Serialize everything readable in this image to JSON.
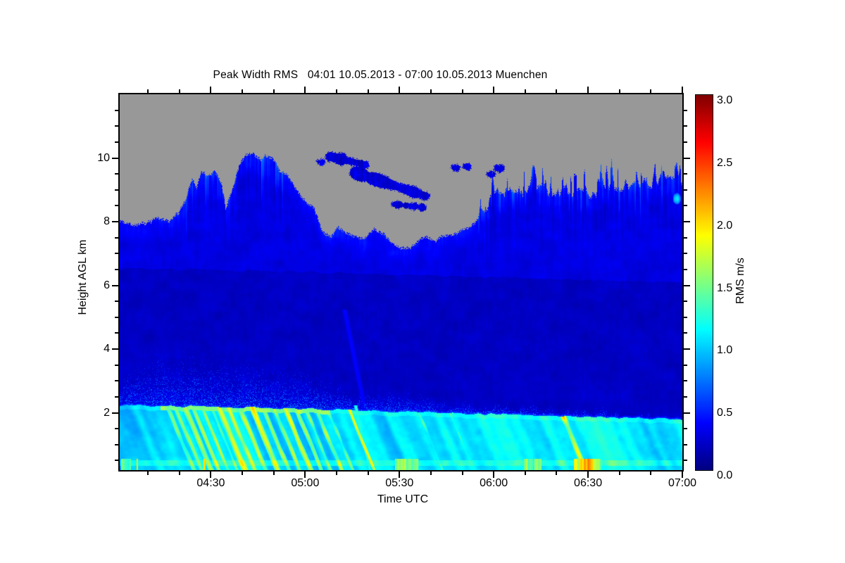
{
  "chart_data": {
    "type": "heatmap",
    "title": "Peak Width RMS   04:01 10.05.2013 - 07:00 10.05.2013 Muenchen",
    "station": "Muenchen",
    "time_start": "04:01 10.05.2013",
    "time_end": "07:00 10.05.2013",
    "x": {
      "label": "Time UTC",
      "start_label": "04:01",
      "end_label": "07:00",
      "duration_min": 179,
      "major_ticks": [
        {
          "min": 29,
          "label": "04:30"
        },
        {
          "min": 59,
          "label": "05:00"
        },
        {
          "min": 89,
          "label": "05:30"
        },
        {
          "min": 119,
          "label": "06:00"
        },
        {
          "min": 149,
          "label": "06:30"
        },
        {
          "min": 179,
          "label": "07:00"
        }
      ],
      "minor_first_min": 9,
      "minor_step_min": 10
    },
    "y": {
      "label": "Height AGL km",
      "min": 0.2,
      "max": 12.0,
      "major_ticks": [
        2,
        4,
        6,
        8,
        10
      ],
      "minor_step": 0.5
    },
    "colorbar": {
      "label": "RMS m/s",
      "min": 0,
      "max": 3,
      "major_ticks": [
        0,
        0.5,
        1,
        1.5,
        2,
        2.5,
        3
      ],
      "minor_step": 0.1,
      "colormap": "jet"
    },
    "no_data_color": "#989898",
    "axes_color": "#000000",
    "field": {
      "cloud_top_km": [
        [
          0,
          8.05
        ],
        [
          4,
          7.9
        ],
        [
          8,
          8.0
        ],
        [
          12,
          8.2
        ],
        [
          16,
          8.0
        ],
        [
          19,
          8.3
        ],
        [
          21,
          8.7
        ],
        [
          23,
          9.4
        ],
        [
          24.5,
          9.1
        ],
        [
          26,
          9.65
        ],
        [
          28,
          9.38
        ],
        [
          30.5,
          9.6
        ],
        [
          32.5,
          9.2
        ],
        [
          33.8,
          8.45
        ],
        [
          35,
          8.9
        ],
        [
          36.5,
          9.25
        ],
        [
          38,
          9.75
        ],
        [
          40,
          10.05
        ],
        [
          42,
          10.18
        ],
        [
          44,
          10.0
        ],
        [
          46.5,
          10.1
        ],
        [
          49,
          10.0
        ],
        [
          51,
          9.65
        ],
        [
          53,
          9.6
        ],
        [
          55,
          9.28
        ],
        [
          57,
          8.95
        ],
        [
          59.5,
          8.62
        ],
        [
          62,
          8.45
        ],
        [
          64.5,
          7.72
        ],
        [
          67,
          7.55
        ],
        [
          69.5,
          7.85
        ],
        [
          72,
          7.68
        ],
        [
          75,
          7.55
        ],
        [
          78,
          7.5
        ],
        [
          81,
          7.8
        ],
        [
          84,
          7.68
        ],
        [
          87,
          7.37
        ],
        [
          89.5,
          7.2
        ],
        [
          92.5,
          7.2
        ],
        [
          95,
          7.42
        ],
        [
          97.5,
          7.55
        ],
        [
          100,
          7.38
        ],
        [
          102.5,
          7.6
        ],
        [
          105,
          7.62
        ],
        [
          108,
          7.72
        ],
        [
          111,
          7.85
        ],
        [
          113.5,
          8.05
        ],
        [
          115,
          8.4
        ],
        [
          116.5,
          8.25
        ],
        [
          118,
          8.75
        ],
        [
          120,
          8.9
        ],
        [
          122,
          8.8
        ],
        [
          124,
          9.0
        ],
        [
          126,
          8.9
        ],
        [
          128,
          9.0
        ],
        [
          130,
          9.08
        ],
        [
          132,
          8.95
        ],
        [
          134,
          9.1
        ],
        [
          136,
          9.0
        ],
        [
          138,
          9.1
        ],
        [
          140,
          8.95
        ],
        [
          142,
          9.12
        ],
        [
          144,
          9.0
        ],
        [
          146,
          9.1
        ],
        [
          148,
          9.12
        ],
        [
          150,
          9.02
        ],
        [
          153,
          9.15
        ],
        [
          155,
          9.25
        ],
        [
          157,
          9.1
        ],
        [
          159,
          9.18
        ],
        [
          161,
          9.35
        ],
        [
          163,
          9.15
        ],
        [
          165,
          9.22
        ],
        [
          167,
          9.4
        ],
        [
          169,
          9.2
        ],
        [
          171,
          9.28
        ],
        [
          173,
          9.45
        ],
        [
          175,
          9.32
        ],
        [
          177,
          9.28
        ],
        [
          179,
          9.25
        ]
      ],
      "cloud_jitter": [
        [
          0,
          0.08
        ],
        [
          20,
          0.15
        ],
        [
          35,
          0.18
        ],
        [
          55,
          0.12
        ],
        [
          70,
          0.08
        ],
        [
          100,
          0.08
        ],
        [
          113,
          0.12
        ],
        [
          116,
          0.28
        ],
        [
          125,
          0.33
        ],
        [
          150,
          0.38
        ],
        [
          179,
          0.36
        ]
      ],
      "spike_after_min": 114,
      "band_top_km": [
        [
          0,
          2.24
        ],
        [
          20,
          2.2
        ],
        [
          40,
          2.16
        ],
        [
          60,
          2.12
        ],
        [
          80,
          2.06
        ],
        [
          100,
          2.0
        ],
        [
          120,
          1.95
        ],
        [
          140,
          1.9
        ],
        [
          160,
          1.85
        ],
        [
          179,
          1.79
        ]
      ],
      "plume_env_km": [
        [
          0,
          3.3
        ],
        [
          6,
          4.0
        ],
        [
          12,
          4.25
        ],
        [
          18,
          4.1
        ],
        [
          24,
          4.2
        ],
        [
          30,
          4.25
        ],
        [
          36,
          4.0
        ],
        [
          42,
          4.1
        ],
        [
          48,
          3.8
        ],
        [
          54,
          3.6
        ],
        [
          58,
          3.75
        ],
        [
          63,
          3.4
        ],
        [
          68,
          3.1
        ],
        [
          74,
          2.9
        ],
        [
          80,
          2.75
        ],
        [
          88,
          2.9
        ],
        [
          95,
          2.75
        ],
        [
          102,
          2.6
        ],
        [
          110,
          2.45
        ],
        [
          120,
          2.3
        ],
        [
          135,
          2.25
        ],
        [
          150,
          2.1
        ],
        [
          165,
          2.0
        ],
        [
          179,
          1.95
        ]
      ],
      "virga_zones": [
        {
          "t0": 21,
          "t1": 52,
          "depth": 1.7,
          "strength": 0.6
        },
        {
          "t0": 114,
          "t1": 126,
          "depth": 0.9,
          "strength": 0.38
        },
        {
          "t0": 127,
          "t1": 140,
          "depth": 0.8,
          "strength": 0.3
        },
        {
          "t0": 141,
          "t1": 160,
          "depth": 1.2,
          "strength": 0.5
        },
        {
          "t0": 160,
          "t1": 179,
          "depth": 1.4,
          "strength": 0.55
        }
      ],
      "islands": [
        {
          "t0": 63,
          "k0": 9.9,
          "t1": 64.2,
          "k1": 9.88,
          "r": 0.09
        },
        {
          "t0": 67,
          "k0": 10.05,
          "t1": 78,
          "k1": 9.8,
          "r": 0.14
        },
        {
          "t0": 75,
          "k0": 9.55,
          "t1": 97,
          "k1": 8.82,
          "r": 0.17
        },
        {
          "t0": 87,
          "k0": 8.56,
          "t1": 96,
          "k1": 8.47,
          "r": 0.09
        },
        {
          "t0": 106,
          "k0": 9.72,
          "t1": 107,
          "k1": 9.7,
          "r": 0.09
        },
        {
          "t0": 109.8,
          "k0": 9.75,
          "t1": 110.6,
          "k1": 9.74,
          "r": 0.08
        },
        {
          "t0": 117.5,
          "k0": 9.5,
          "t1": 118.3,
          "k1": 9.5,
          "r": 0.09
        },
        {
          "t0": 120,
          "k0": 9.7,
          "t1": 121,
          "k1": 9.68,
          "r": 0.1
        }
      ],
      "yellow_streaks": [
        {
          "t": 15,
          "v": 1.5,
          "w": 0.9
        },
        {
          "t": 17.5,
          "v": 1.62,
          "w": 0.8
        },
        {
          "t": 20.5,
          "v": 1.78,
          "w": 1.0
        },
        {
          "t": 23,
          "v": 1.65,
          "w": 0.8
        },
        {
          "t": 26,
          "v": 1.55,
          "w": 0.7
        },
        {
          "t": 29,
          "v": 1.5,
          "w": 0.7
        },
        {
          "t": 31.5,
          "v": 1.8,
          "w": 1.1
        },
        {
          "t": 34.5,
          "v": 1.72,
          "w": 0.9
        },
        {
          "t": 38,
          "v": 1.68,
          "w": 0.9
        },
        {
          "t": 42,
          "v": 1.85,
          "w": 1.1
        },
        {
          "t": 45.5,
          "v": 1.62,
          "w": 0.8
        },
        {
          "t": 49,
          "v": 1.58,
          "w": 0.8
        },
        {
          "t": 52.5,
          "v": 1.7,
          "w": 0.9
        },
        {
          "t": 56,
          "v": 1.5,
          "w": 0.8
        },
        {
          "t": 59,
          "v": 1.45,
          "w": 0.7
        },
        {
          "t": 62.5,
          "v": 1.58,
          "w": 0.8
        },
        {
          "t": 66,
          "v": 1.4,
          "w": 0.7
        },
        {
          "t": 73,
          "v": 1.72,
          "w": 0.6
        },
        {
          "t": 95,
          "v": 1.28,
          "w": 0.6
        },
        {
          "t": 105,
          "v": 1.22,
          "w": 0.5
        },
        {
          "t": 141,
          "v": 1.8,
          "w": 1.0
        }
      ],
      "band_edge_yellow": {
        "t0": 13,
        "t1": 67,
        "v": 1.3,
        "amp": 0.45
      },
      "special_streaks": [
        {
          "t0": 71.5,
          "k0": 5.2,
          "t1": 78,
          "k1": 2.06,
          "v": 0.38,
          "w": 0.9
        },
        {
          "t0": 75,
          "k0": 2.2,
          "t1": 79.5,
          "k1": 0.2,
          "v": 1.25,
          "w": 0.6
        }
      ],
      "bright_blobs": [
        {
          "t": 177.3,
          "km": 8.72,
          "rt": 1.3,
          "rk": 0.18,
          "v": 1.0
        }
      ],
      "bottom_line": {
        "km_lo": 0.34,
        "km_hi": 0.52
      },
      "bottom_spots": [
        {
          "t": 2,
          "v": 1.35,
          "w": 1.5
        },
        {
          "t": 90,
          "v": 1.5,
          "w": 2.5
        },
        {
          "t": 93.5,
          "v": 1.45,
          "w": 1.5
        },
        {
          "t": 130,
          "v": 1.5,
          "w": 1.5
        },
        {
          "t": 133,
          "v": 1.45,
          "w": 1.2
        },
        {
          "t": 146,
          "v": 1.7,
          "w": 1.5
        },
        {
          "t": 148.5,
          "v": 2.05,
          "w": 2.2
        },
        {
          "t": 152,
          "v": 1.5,
          "w": 1.2
        },
        {
          "t": 5.6,
          "v": 1.9,
          "w": 0.3
        },
        {
          "t": 27,
          "v": 1.85,
          "w": 0.3
        }
      ]
    }
  }
}
